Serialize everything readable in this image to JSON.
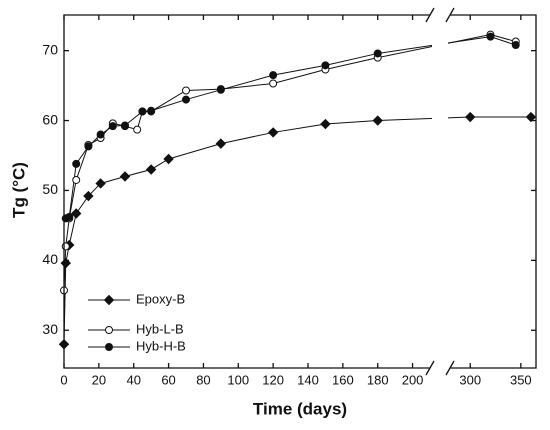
{
  "chart_data": {
    "type": "line",
    "xlabel": "Time (days)",
    "ylabel": "Tg (°C)",
    "xlim": [
      0,
      365
    ],
    "xbreak": [
      210,
      280
    ],
    "xticks": [
      0,
      20,
      40,
      60,
      80,
      100,
      120,
      140,
      160,
      180,
      200,
      300,
      350
    ],
    "ylim": [
      24.6,
      75.1
    ],
    "yticks": [
      30,
      40,
      50,
      60,
      70
    ],
    "legend": "lower left",
    "series": [
      {
        "name": "Epoxy-B",
        "color": "#111111",
        "marker": "diamond",
        "x": [
          0,
          1,
          3,
          7,
          14,
          21,
          35,
          50,
          60,
          90,
          120,
          150,
          180,
          300,
          360
        ],
        "values": [
          28,
          39.6,
          42.2,
          46.7,
          49.2,
          51,
          52,
          53,
          54.5,
          56.7,
          58.3,
          59.5,
          60,
          60.5,
          60.5
        ]
      },
      {
        "name": "Hyb-L-B",
        "color": "#111111",
        "marker": "open-circle",
        "x": [
          0,
          1,
          3,
          7,
          14,
          21,
          28,
          35,
          42,
          45,
          50,
          70,
          90,
          120,
          150,
          180,
          320,
          345
        ],
        "values": [
          35.7,
          42,
          46,
          51.5,
          56.5,
          57.5,
          59.6,
          59.2,
          58.7,
          61.3,
          61.3,
          64.3,
          64.5,
          65.3,
          67.3,
          69,
          72.3,
          71.3
        ]
      },
      {
        "name": "Hyb-H-B",
        "color": "#111111",
        "marker": "filled-circle",
        "x": [
          1,
          3,
          7,
          14,
          21,
          28,
          35,
          45,
          50,
          70,
          90,
          120,
          150,
          180,
          320,
          345
        ],
        "values": [
          46,
          46.2,
          53.8,
          56.3,
          58,
          59.2,
          59.3,
          61.3,
          61.4,
          63,
          64.4,
          66.5,
          67.9,
          69.6,
          72,
          70.8
        ]
      }
    ]
  }
}
